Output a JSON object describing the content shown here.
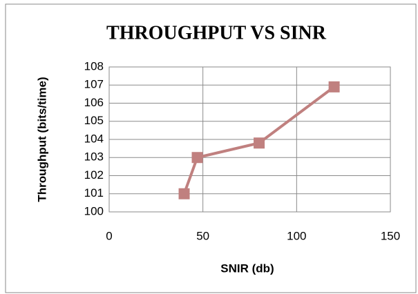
{
  "chart_data": {
    "type": "line",
    "title": "THROUGHPUT VS SINR",
    "x_label": "SNIR (db)",
    "y_label": "Throughput (bits/time)",
    "series": [
      {
        "name": "Throughput",
        "color": "#c0807f",
        "x": [
          40,
          47,
          80,
          120
        ],
        "values": [
          101,
          103,
          103.8,
          106.9
        ]
      }
    ],
    "xlim": [
      0,
      150
    ],
    "xticks": [
      0,
      50,
      100,
      150
    ],
    "ylim": [
      100,
      108
    ],
    "yticks": [
      100,
      101,
      102,
      103,
      104,
      105,
      106,
      107,
      108
    ],
    "grid": true
  }
}
